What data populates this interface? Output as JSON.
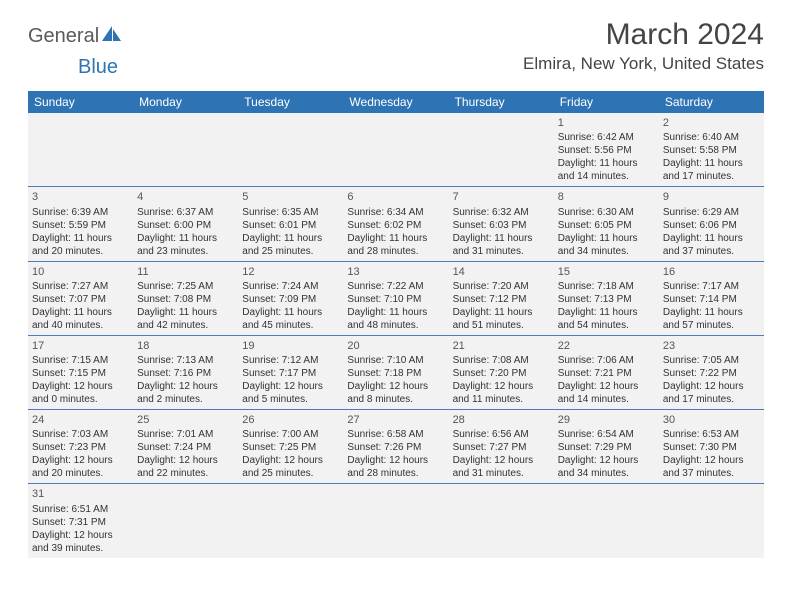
{
  "logo": {
    "part1": "General",
    "part2": "Blue"
  },
  "title": "March 2024",
  "location": "Elmira, New York, United States",
  "colors": {
    "header_bg": "#2e74b5",
    "header_text": "#ffffff",
    "cell_bg": "#f2f2f2",
    "border": "#4a7db8",
    "logo_gray": "#5a5a5a",
    "logo_blue": "#2e74b5"
  },
  "day_headers": [
    "Sunday",
    "Monday",
    "Tuesday",
    "Wednesday",
    "Thursday",
    "Friday",
    "Saturday"
  ],
  "weeks": [
    [
      {
        "n": "",
        "sr": "",
        "ss": "",
        "d1": "",
        "d2": ""
      },
      {
        "n": "",
        "sr": "",
        "ss": "",
        "d1": "",
        "d2": ""
      },
      {
        "n": "",
        "sr": "",
        "ss": "",
        "d1": "",
        "d2": ""
      },
      {
        "n": "",
        "sr": "",
        "ss": "",
        "d1": "",
        "d2": ""
      },
      {
        "n": "",
        "sr": "",
        "ss": "",
        "d1": "",
        "d2": ""
      },
      {
        "n": "1",
        "sr": "Sunrise: 6:42 AM",
        "ss": "Sunset: 5:56 PM",
        "d1": "Daylight: 11 hours",
        "d2": "and 14 minutes."
      },
      {
        "n": "2",
        "sr": "Sunrise: 6:40 AM",
        "ss": "Sunset: 5:58 PM",
        "d1": "Daylight: 11 hours",
        "d2": "and 17 minutes."
      }
    ],
    [
      {
        "n": "3",
        "sr": "Sunrise: 6:39 AM",
        "ss": "Sunset: 5:59 PM",
        "d1": "Daylight: 11 hours",
        "d2": "and 20 minutes."
      },
      {
        "n": "4",
        "sr": "Sunrise: 6:37 AM",
        "ss": "Sunset: 6:00 PM",
        "d1": "Daylight: 11 hours",
        "d2": "and 23 minutes."
      },
      {
        "n": "5",
        "sr": "Sunrise: 6:35 AM",
        "ss": "Sunset: 6:01 PM",
        "d1": "Daylight: 11 hours",
        "d2": "and 25 minutes."
      },
      {
        "n": "6",
        "sr": "Sunrise: 6:34 AM",
        "ss": "Sunset: 6:02 PM",
        "d1": "Daylight: 11 hours",
        "d2": "and 28 minutes."
      },
      {
        "n": "7",
        "sr": "Sunrise: 6:32 AM",
        "ss": "Sunset: 6:03 PM",
        "d1": "Daylight: 11 hours",
        "d2": "and 31 minutes."
      },
      {
        "n": "8",
        "sr": "Sunrise: 6:30 AM",
        "ss": "Sunset: 6:05 PM",
        "d1": "Daylight: 11 hours",
        "d2": "and 34 minutes."
      },
      {
        "n": "9",
        "sr": "Sunrise: 6:29 AM",
        "ss": "Sunset: 6:06 PM",
        "d1": "Daylight: 11 hours",
        "d2": "and 37 minutes."
      }
    ],
    [
      {
        "n": "10",
        "sr": "Sunrise: 7:27 AM",
        "ss": "Sunset: 7:07 PM",
        "d1": "Daylight: 11 hours",
        "d2": "and 40 minutes."
      },
      {
        "n": "11",
        "sr": "Sunrise: 7:25 AM",
        "ss": "Sunset: 7:08 PM",
        "d1": "Daylight: 11 hours",
        "d2": "and 42 minutes."
      },
      {
        "n": "12",
        "sr": "Sunrise: 7:24 AM",
        "ss": "Sunset: 7:09 PM",
        "d1": "Daylight: 11 hours",
        "d2": "and 45 minutes."
      },
      {
        "n": "13",
        "sr": "Sunrise: 7:22 AM",
        "ss": "Sunset: 7:10 PM",
        "d1": "Daylight: 11 hours",
        "d2": "and 48 minutes."
      },
      {
        "n": "14",
        "sr": "Sunrise: 7:20 AM",
        "ss": "Sunset: 7:12 PM",
        "d1": "Daylight: 11 hours",
        "d2": "and 51 minutes."
      },
      {
        "n": "15",
        "sr": "Sunrise: 7:18 AM",
        "ss": "Sunset: 7:13 PM",
        "d1": "Daylight: 11 hours",
        "d2": "and 54 minutes."
      },
      {
        "n": "16",
        "sr": "Sunrise: 7:17 AM",
        "ss": "Sunset: 7:14 PM",
        "d1": "Daylight: 11 hours",
        "d2": "and 57 minutes."
      }
    ],
    [
      {
        "n": "17",
        "sr": "Sunrise: 7:15 AM",
        "ss": "Sunset: 7:15 PM",
        "d1": "Daylight: 12 hours",
        "d2": "and 0 minutes."
      },
      {
        "n": "18",
        "sr": "Sunrise: 7:13 AM",
        "ss": "Sunset: 7:16 PM",
        "d1": "Daylight: 12 hours",
        "d2": "and 2 minutes."
      },
      {
        "n": "19",
        "sr": "Sunrise: 7:12 AM",
        "ss": "Sunset: 7:17 PM",
        "d1": "Daylight: 12 hours",
        "d2": "and 5 minutes."
      },
      {
        "n": "20",
        "sr": "Sunrise: 7:10 AM",
        "ss": "Sunset: 7:18 PM",
        "d1": "Daylight: 12 hours",
        "d2": "and 8 minutes."
      },
      {
        "n": "21",
        "sr": "Sunrise: 7:08 AM",
        "ss": "Sunset: 7:20 PM",
        "d1": "Daylight: 12 hours",
        "d2": "and 11 minutes."
      },
      {
        "n": "22",
        "sr": "Sunrise: 7:06 AM",
        "ss": "Sunset: 7:21 PM",
        "d1": "Daylight: 12 hours",
        "d2": "and 14 minutes."
      },
      {
        "n": "23",
        "sr": "Sunrise: 7:05 AM",
        "ss": "Sunset: 7:22 PM",
        "d1": "Daylight: 12 hours",
        "d2": "and 17 minutes."
      }
    ],
    [
      {
        "n": "24",
        "sr": "Sunrise: 7:03 AM",
        "ss": "Sunset: 7:23 PM",
        "d1": "Daylight: 12 hours",
        "d2": "and 20 minutes."
      },
      {
        "n": "25",
        "sr": "Sunrise: 7:01 AM",
        "ss": "Sunset: 7:24 PM",
        "d1": "Daylight: 12 hours",
        "d2": "and 22 minutes."
      },
      {
        "n": "26",
        "sr": "Sunrise: 7:00 AM",
        "ss": "Sunset: 7:25 PM",
        "d1": "Daylight: 12 hours",
        "d2": "and 25 minutes."
      },
      {
        "n": "27",
        "sr": "Sunrise: 6:58 AM",
        "ss": "Sunset: 7:26 PM",
        "d1": "Daylight: 12 hours",
        "d2": "and 28 minutes."
      },
      {
        "n": "28",
        "sr": "Sunrise: 6:56 AM",
        "ss": "Sunset: 7:27 PM",
        "d1": "Daylight: 12 hours",
        "d2": "and 31 minutes."
      },
      {
        "n": "29",
        "sr": "Sunrise: 6:54 AM",
        "ss": "Sunset: 7:29 PM",
        "d1": "Daylight: 12 hours",
        "d2": "and 34 minutes."
      },
      {
        "n": "30",
        "sr": "Sunrise: 6:53 AM",
        "ss": "Sunset: 7:30 PM",
        "d1": "Daylight: 12 hours",
        "d2": "and 37 minutes."
      }
    ],
    [
      {
        "n": "31",
        "sr": "Sunrise: 6:51 AM",
        "ss": "Sunset: 7:31 PM",
        "d1": "Daylight: 12 hours",
        "d2": "and 39 minutes."
      },
      {
        "n": "",
        "sr": "",
        "ss": "",
        "d1": "",
        "d2": ""
      },
      {
        "n": "",
        "sr": "",
        "ss": "",
        "d1": "",
        "d2": ""
      },
      {
        "n": "",
        "sr": "",
        "ss": "",
        "d1": "",
        "d2": ""
      },
      {
        "n": "",
        "sr": "",
        "ss": "",
        "d1": "",
        "d2": ""
      },
      {
        "n": "",
        "sr": "",
        "ss": "",
        "d1": "",
        "d2": ""
      },
      {
        "n": "",
        "sr": "",
        "ss": "",
        "d1": "",
        "d2": ""
      }
    ]
  ]
}
